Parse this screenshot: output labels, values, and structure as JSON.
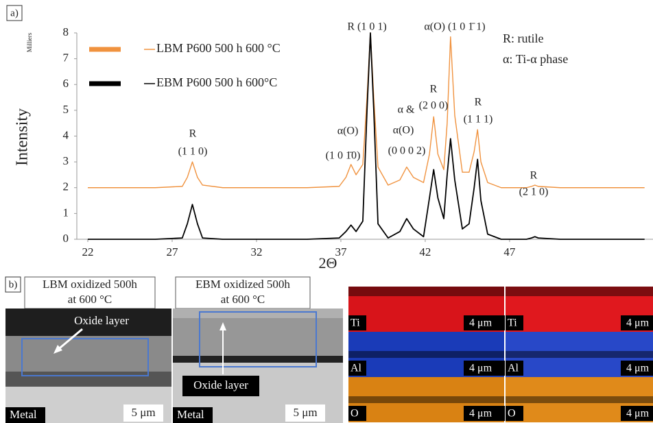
{
  "chart_data": {
    "type": "line",
    "panel_label": "a)",
    "y_unit": "Milliers",
    "ylabel": "Intensity",
    "xlabel": "2Θ",
    "x": [
      22,
      24,
      26,
      27.6,
      27.9,
      28.2,
      28.5,
      28.8,
      30,
      32,
      35,
      36.9,
      37.3,
      37.6,
      37.9,
      38.3,
      38.55,
      38.75,
      38.95,
      39.2,
      39.8,
      40.5,
      40.9,
      41.3,
      41.9,
      42.25,
      42.5,
      42.75,
      43.1,
      43.3,
      43.5,
      43.75,
      44.2,
      44.6,
      44.9,
      45.1,
      45.3,
      45.7,
      46.5,
      48,
      48.3,
      48.5,
      48.7,
      50,
      52,
      54,
      55
    ],
    "series": [
      {
        "name": "LBM P600 500 h 600 °C",
        "color": "#f0923e",
        "values": [
          2.0,
          2.0,
          2.0,
          2.05,
          2.4,
          3.0,
          2.4,
          2.1,
          2.0,
          2.0,
          2.0,
          2.05,
          2.4,
          2.9,
          2.5,
          2.9,
          5.5,
          8,
          5.5,
          2.8,
          2.1,
          2.3,
          2.8,
          2.4,
          2.2,
          3.3,
          4.75,
          3.3,
          2.7,
          4.5,
          7.85,
          4.8,
          2.6,
          2.6,
          3.4,
          4.25,
          3.0,
          2.2,
          2.0,
          2.0,
          2.05,
          2.1,
          2.05,
          2.0,
          2.0,
          2.0,
          2.0
        ]
      },
      {
        "name": "EBM P600 500 h 600°C",
        "color": "#000000",
        "values": [
          0,
          0,
          0,
          0.05,
          0.6,
          1.35,
          0.6,
          0.05,
          0,
          0,
          0,
          0.05,
          0.3,
          0.55,
          0.3,
          0.7,
          5,
          8,
          5,
          0.6,
          0.05,
          0.3,
          0.8,
          0.4,
          0.1,
          1.6,
          2.7,
          1.6,
          0.8,
          2.5,
          3.9,
          2.3,
          0.4,
          0.6,
          2.0,
          3.1,
          1.5,
          0.2,
          0,
          0,
          0.05,
          0.1,
          0.05,
          0,
          0,
          0,
          0
        ]
      }
    ],
    "xlim": [
      21.35,
      55.5
    ],
    "xticks": [
      22,
      27,
      32,
      37,
      42,
      47
    ],
    "ylim": [
      0,
      8
    ],
    "yticks": [
      0,
      1,
      2,
      3,
      4,
      5,
      6,
      7,
      8
    ],
    "annotations": [
      "R",
      "(1 1 0)",
      "α(O)",
      "(1 0 1̄0)",
      "R (1 0 1)",
      "α(O)",
      "(0 0 0 2)",
      "α &",
      "R",
      "(2 0 0)",
      "α(O) (1 0 1̄ 1)",
      "R",
      "(1 1 1)",
      "R",
      "(2 1 0)",
      "R: rutile",
      "α: Ti-α phase"
    ]
  },
  "figure": {
    "panel_label": "b)",
    "micrographs": [
      {
        "title": [
          "LBM oxidized 500h",
          "at 600 °C"
        ],
        "callout": "Oxide layer",
        "region": "Metal",
        "scale": "5 μm"
      },
      {
        "title": [
          "EBM oxidized 500h",
          "at 600 °C"
        ],
        "callout": "Oxide layer",
        "region": "Metal",
        "scale": "5 μm"
      }
    ],
    "eds_maps": [
      {
        "element": "Ti",
        "scale": "4 μm"
      },
      {
        "element": "Ti",
        "scale": "4 μm"
      },
      {
        "element": "Al",
        "scale": "4 μm"
      },
      {
        "element": "Al",
        "scale": "4 μm"
      },
      {
        "element": "O",
        "scale": "4 μm"
      },
      {
        "element": "O",
        "scale": "4 μm"
      }
    ]
  }
}
